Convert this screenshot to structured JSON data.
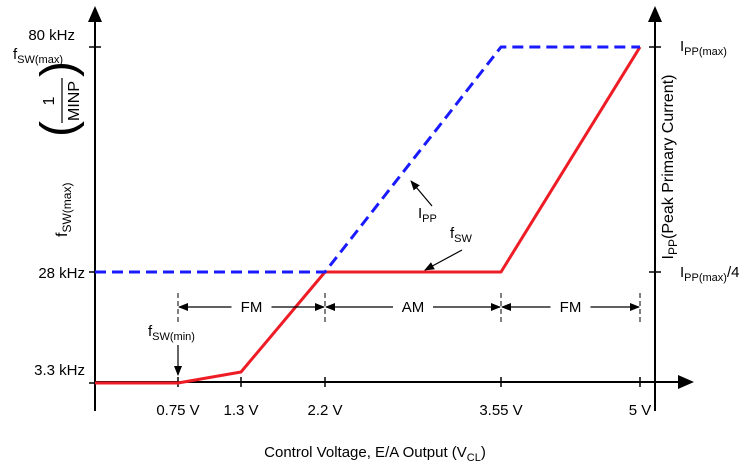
{
  "chart_data": {
    "type": "line",
    "xlabel": {
      "main": "Control Voltage, E/A Output (V",
      "sub": "CL",
      "tail": ")"
    },
    "x_ticks": [
      {
        "value": 0.75,
        "label": "0.75 V"
      },
      {
        "value": 1.3,
        "label": "1.3 V"
      },
      {
        "value": 2.2,
        "label": "2.2 V"
      },
      {
        "value": 3.55,
        "label": "3.55 V"
      },
      {
        "value": 5.0,
        "label": "5 V"
      }
    ],
    "left_ticks": [
      {
        "value": 80,
        "label": "80 kHz"
      },
      {
        "value": 28,
        "label": "28 kHz"
      },
      {
        "value": 3.3,
        "label": "3.3 kHz"
      }
    ],
    "left_extra": {
      "f": "f",
      "sub": "SW(max)"
    },
    "left_ylabel": {
      "f": "f",
      "sub": "SW(max)",
      "num": "1",
      "den": "MINP"
    },
    "right_ylabel": {
      "main": "I",
      "sub": "PP",
      "tail": "(Peak Primary Current)"
    },
    "right_ticks": [
      {
        "main": "I",
        "sub": "PP(max)",
        "tail": ""
      },
      {
        "main": "I",
        "sub": "PP(max)",
        "tail": "/4"
      }
    ],
    "series": [
      {
        "name": "fSW",
        "color": "#ee1c25",
        "style": "solid",
        "points": [
          [
            0,
            3.3
          ],
          [
            0.75,
            3.3
          ],
          [
            1.3,
            4.0
          ],
          [
            2.2,
            28
          ],
          [
            3.55,
            28
          ],
          [
            5.0,
            80
          ]
        ]
      },
      {
        "name": "IPP",
        "color": "#1a1aff",
        "style": "dashed",
        "points": [
          [
            0,
            28
          ],
          [
            2.2,
            28
          ],
          [
            3.55,
            80
          ],
          [
            5.0,
            80
          ]
        ]
      }
    ],
    "annotations": {
      "ipp": {
        "main": "I",
        "sub": "PP"
      },
      "fsw": {
        "main": "f",
        "sub": "SW"
      },
      "fswmin": {
        "main": "f",
        "sub": "SW(min)"
      }
    },
    "regions": [
      {
        "label": "FM",
        "from": 0.75,
        "to": 2.2
      },
      {
        "label": "AM",
        "from": 2.2,
        "to": 3.55
      },
      {
        "label": "FM",
        "from": 3.55,
        "to": 5.0
      }
    ]
  }
}
